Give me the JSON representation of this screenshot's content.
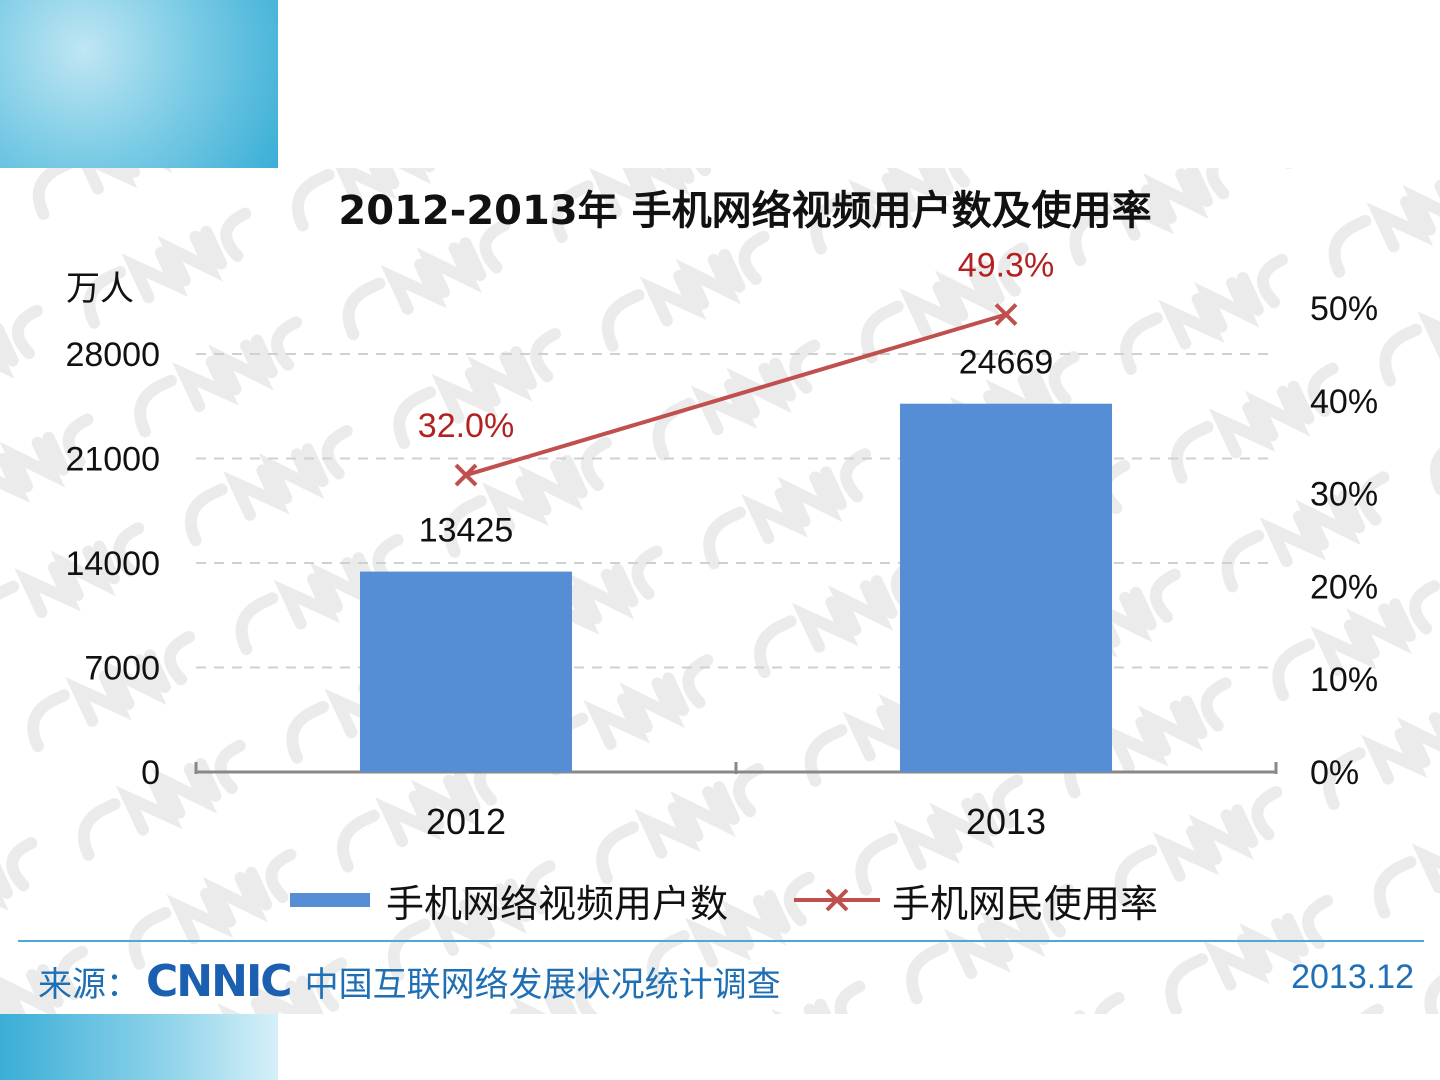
{
  "chart_data": {
    "type": "bar",
    "title": "2012-2013年 手机网络视频用户数及使用率",
    "categories": [
      "2012",
      "2013"
    ],
    "series": [
      {
        "name": "手机网络视频用户数",
        "type": "bar",
        "axis": "left",
        "values": [
          13425,
          24669
        ],
        "labels": [
          "13425",
          "24669"
        ]
      },
      {
        "name": "手机网民使用率",
        "type": "line",
        "axis": "right",
        "values": [
          32.0,
          49.3
        ],
        "labels": [
          "32.0%",
          "49.3%"
        ]
      }
    ],
    "ylabel": "万人",
    "ylim": [
      0,
      28000
    ],
    "yticks": [
      "0",
      "7000",
      "14000",
      "21000",
      "28000"
    ],
    "y2lim": [
      0,
      50
    ],
    "y2ticks": [
      "0%",
      "10%",
      "20%",
      "30%",
      "40%",
      "50%"
    ],
    "grid": true,
    "legend_position": "bottom",
    "colors": {
      "bar": "#558ed5",
      "line": "#c0504d",
      "line_label": "#b22222"
    }
  },
  "footer": {
    "source_label": "来源：",
    "logo": "CNNIC",
    "source_text": "中国互联网络发展状况统计调查",
    "date": "2013.12"
  }
}
